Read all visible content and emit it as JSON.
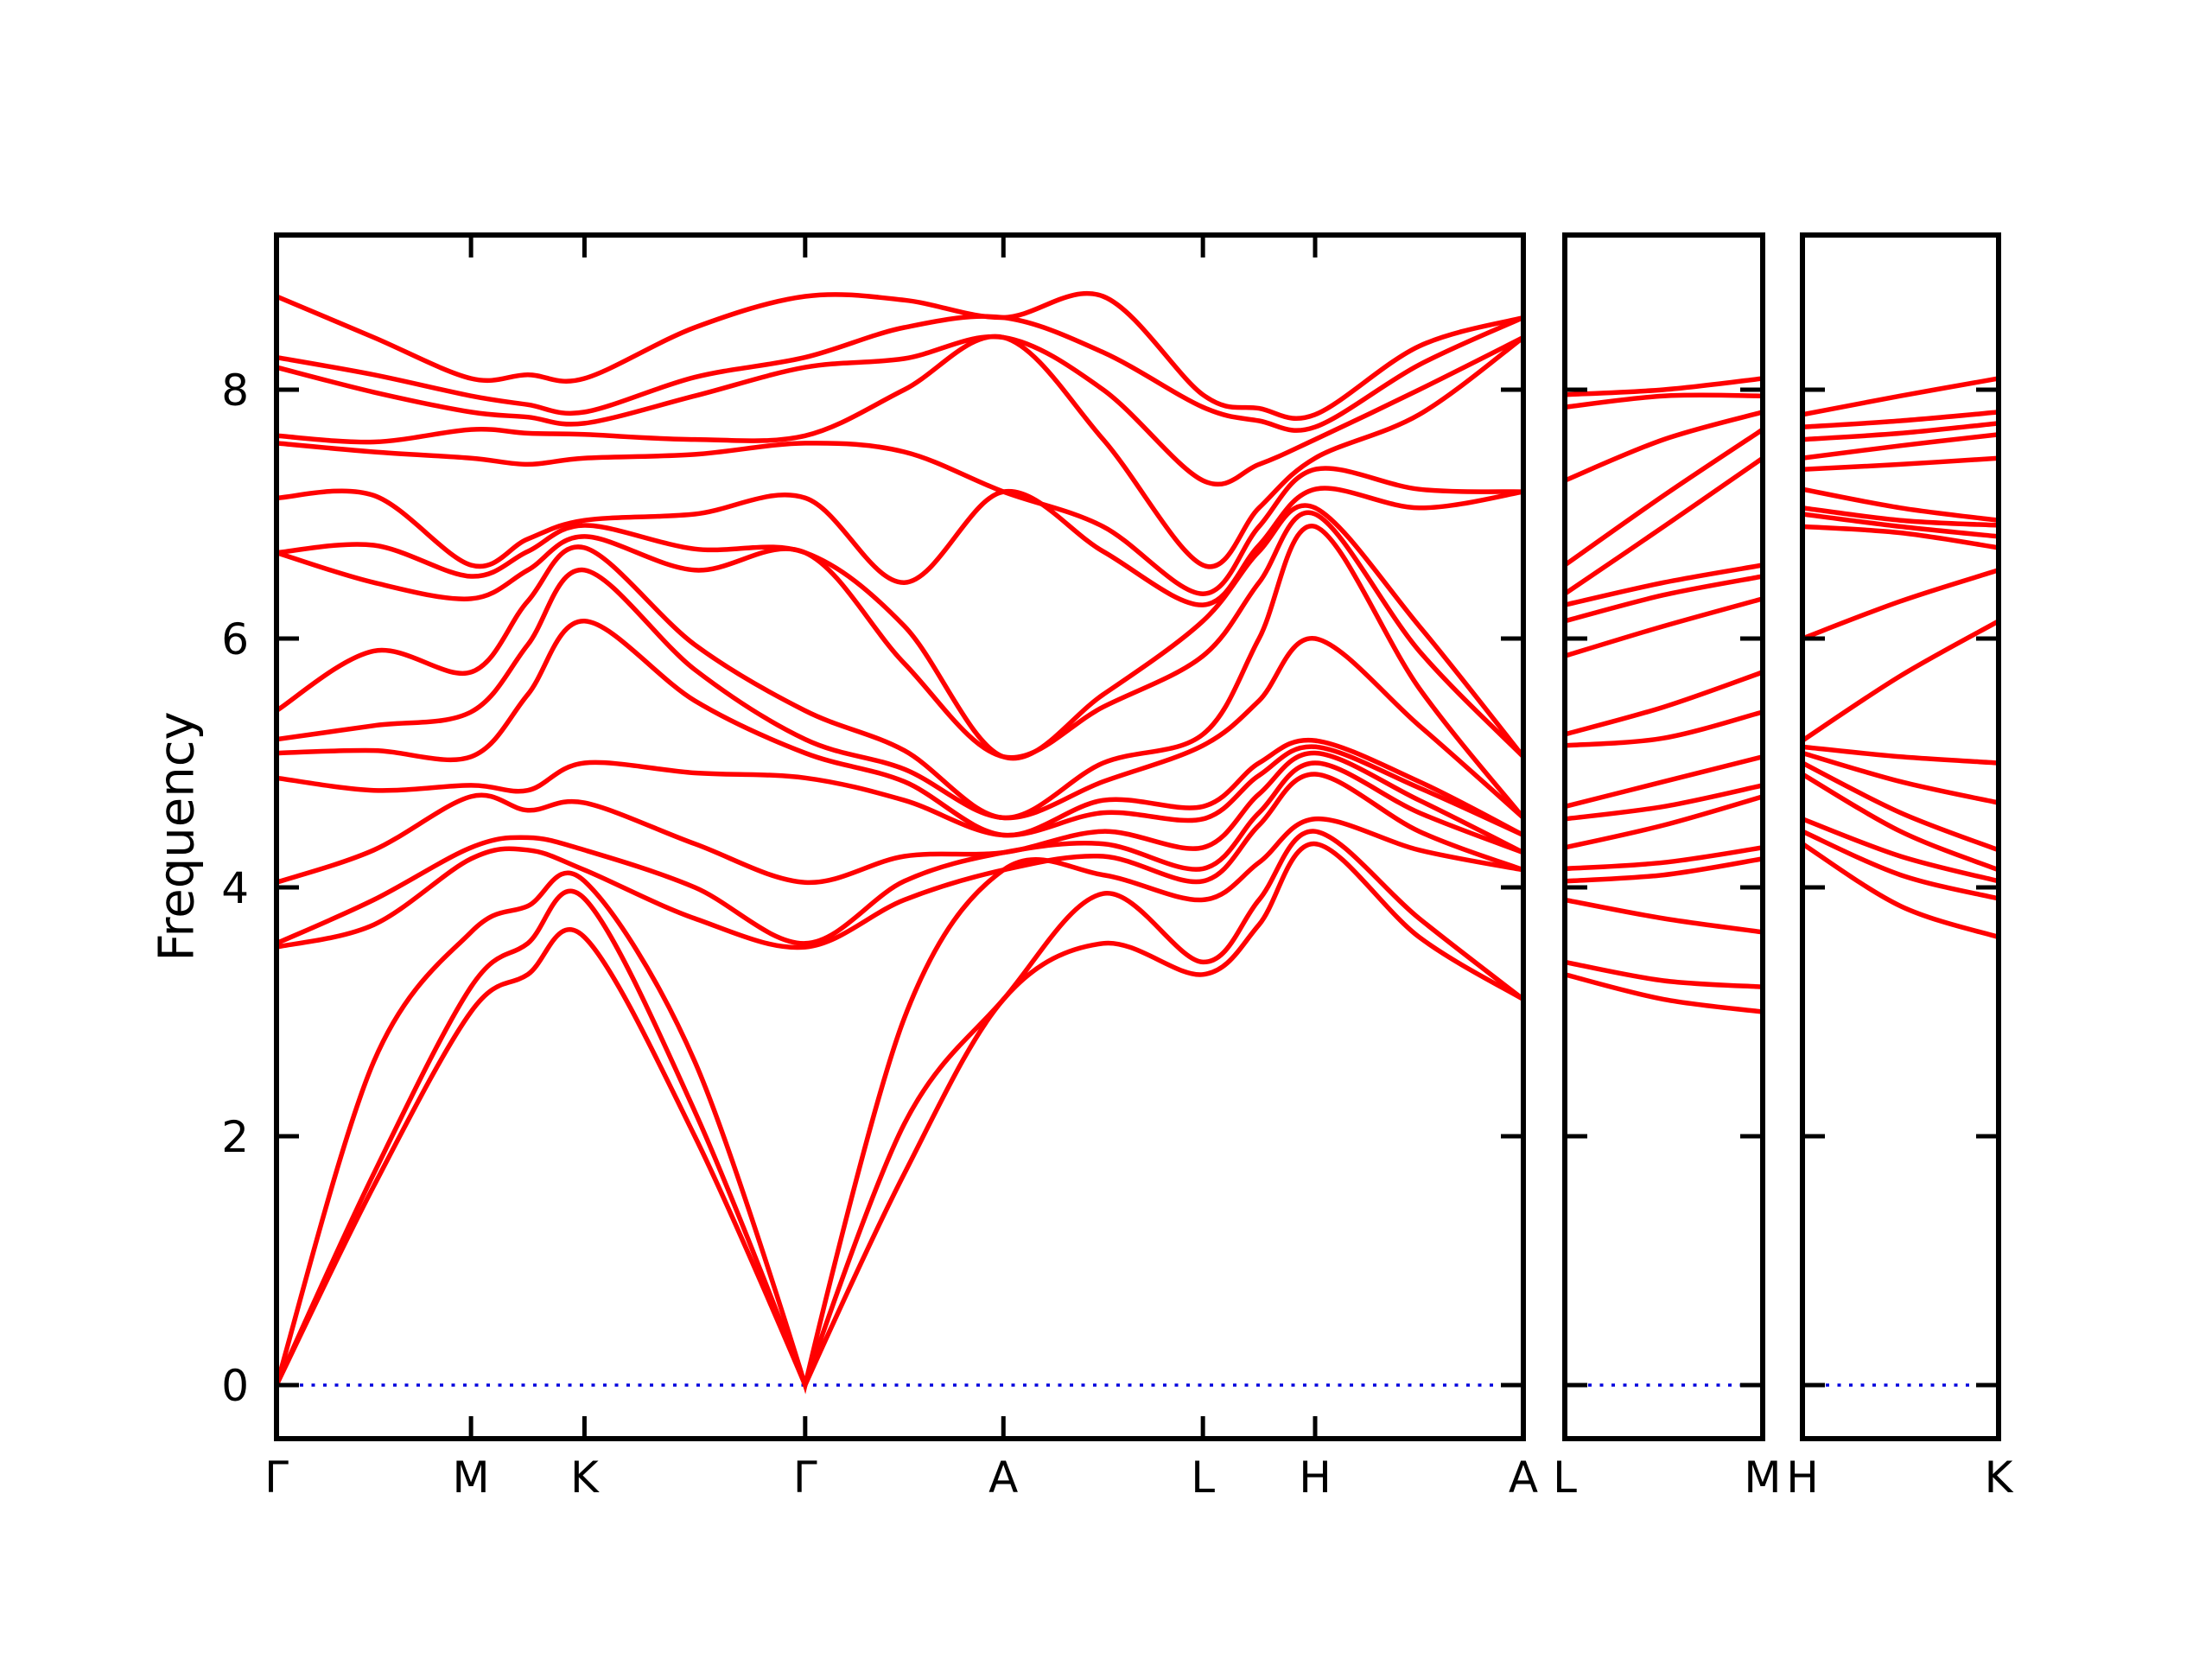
{
  "figure": {
    "background": "#ffffff",
    "frame_color": "#000000"
  },
  "chart_data": {
    "type": "line",
    "title": "",
    "xlabel": "",
    "ylabel": "Frequency",
    "ylim": [
      -0.43,
      9.24
    ],
    "y_ticks": [
      {
        "label": "0",
        "value": 0
      },
      {
        "label": "2",
        "value": 2
      },
      {
        "label": "4",
        "value": 4
      },
      {
        "label": "6",
        "value": 6
      },
      {
        "label": "8",
        "value": 8
      }
    ],
    "grid": false,
    "legend": "none",
    "band_color": "#ff0000",
    "zero_line": {
      "value": 0,
      "color": "#0000dd",
      "style": "dotted"
    },
    "panels": [
      {
        "name": "main",
        "stations": [
          {
            "label": "Γ",
            "t": 0.0
          },
          {
            "label": "M",
            "t": 0.156
          },
          {
            "label": "K",
            "t": 0.247
          },
          {
            "label": "Γ",
            "t": 0.424
          },
          {
            "label": "A",
            "t": 0.583
          },
          {
            "label": "L",
            "t": 0.743
          },
          {
            "label": "H",
            "t": 0.833
          },
          {
            "label": "A",
            "t": 1.0
          }
        ],
        "t": [
          0.0,
          0.078,
          0.156,
          0.2015,
          0.247,
          0.3355,
          0.424,
          0.5035,
          0.583,
          0.663,
          0.743,
          0.788,
          0.833,
          0.9165,
          1.0
        ],
        "bands": [
          [
            0.0,
            1.6,
            3.0,
            3.3,
            3.6,
            2.0,
            0.0,
            1.7,
            3.1,
            3.55,
            3.3,
            3.7,
            4.35,
            3.6,
            3.1
          ],
          [
            0.0,
            1.7,
            3.2,
            3.55,
            3.91,
            2.2,
            0.0,
            2.1,
            3.1,
            3.95,
            3.4,
            3.9,
            4.45,
            3.75,
            3.1
          ],
          [
            0.0,
            2.6,
            3.64,
            3.85,
            4.05,
            2.6,
            0.0,
            2.95,
            4.14,
            4.1,
            3.9,
            4.2,
            4.55,
            4.3,
            4.14
          ],
          [
            3.52,
            3.7,
            4.23,
            4.3,
            4.14,
            3.75,
            3.52,
            3.9,
            4.14,
            4.25,
            4.05,
            4.5,
            4.91,
            4.45,
            4.14
          ],
          [
            3.55,
            3.9,
            4.32,
            4.4,
            4.3,
            4.0,
            3.55,
            4.05,
            4.28,
            4.35,
            4.15,
            4.6,
            5.0,
            4.6,
            4.28
          ],
          [
            4.04,
            4.3,
            4.73,
            4.62,
            4.68,
            4.35,
            4.04,
            4.25,
            4.28,
            4.45,
            4.32,
            4.75,
            5.08,
            4.7,
            4.28
          ],
          [
            4.88,
            4.78,
            4.82,
            4.78,
            5.0,
            4.92,
            4.88,
            4.7,
            4.42,
            4.6,
            4.55,
            4.9,
            5.13,
            4.8,
            4.42
          ],
          [
            5.08,
            5.1,
            5.05,
            5.55,
            6.14,
            5.5,
            5.08,
            4.85,
            4.42,
            4.7,
            4.65,
            5.0,
            5.18,
            4.85,
            4.42
          ],
          [
            5.19,
            5.3,
            5.41,
            5.95,
            6.55,
            5.75,
            5.19,
            4.95,
            4.56,
            4.85,
            5.14,
            5.5,
            6.0,
            5.3,
            4.56
          ],
          [
            5.42,
            5.9,
            5.73,
            6.3,
            6.73,
            5.95,
            5.42,
            5.1,
            4.56,
            5.0,
            5.23,
            6.0,
            6.9,
            5.6,
            4.56
          ],
          [
            6.69,
            6.45,
            6.32,
            6.55,
            6.82,
            6.55,
            6.69,
            5.8,
            5.05,
            5.45,
            5.86,
            6.45,
            7.0,
            5.9,
            5.05
          ],
          [
            6.69,
            6.75,
            6.5,
            6.7,
            6.91,
            6.72,
            6.69,
            6.1,
            5.05,
            5.55,
            6.14,
            6.7,
            7.05,
            6.1,
            5.05
          ],
          [
            7.13,
            7.15,
            6.59,
            6.8,
            6.95,
            7.0,
            7.13,
            6.45,
            7.18,
            6.7,
            6.27,
            6.75,
            7.2,
            7.05,
            7.18
          ],
          [
            7.57,
            7.5,
            7.45,
            7.4,
            7.45,
            7.48,
            7.57,
            7.5,
            7.18,
            6.9,
            6.36,
            6.9,
            7.36,
            7.2,
            7.18
          ],
          [
            7.63,
            7.58,
            7.68,
            7.65,
            7.64,
            7.6,
            7.63,
            8.0,
            8.42,
            7.6,
            6.59,
            7.05,
            7.45,
            7.8,
            8.42
          ],
          [
            8.18,
            7.98,
            7.82,
            7.78,
            7.73,
            7.95,
            8.18,
            8.25,
            8.42,
            8.0,
            7.27,
            7.4,
            7.6,
            8.0,
            8.42
          ],
          [
            8.26,
            8.12,
            7.95,
            7.88,
            7.82,
            8.1,
            8.26,
            8.5,
            8.58,
            8.3,
            7.86,
            7.75,
            7.7,
            8.2,
            8.58
          ],
          [
            8.75,
            8.42,
            8.09,
            8.12,
            8.09,
            8.5,
            8.75,
            8.72,
            8.58,
            8.75,
            7.96,
            7.85,
            7.8,
            8.35,
            8.58
          ]
        ]
      },
      {
        "name": "L-M",
        "stations": [
          {
            "label": "L",
            "t": 0.0
          },
          {
            "label": "M",
            "t": 1.0
          }
        ],
        "t": [
          0.0,
          0.5,
          1.0
        ],
        "bands": [
          [
            3.3,
            3.1,
            3.0
          ],
          [
            3.4,
            3.25,
            3.2
          ],
          [
            3.9,
            3.75,
            3.64
          ],
          [
            4.05,
            4.1,
            4.23
          ],
          [
            4.15,
            4.2,
            4.32
          ],
          [
            4.32,
            4.5,
            4.73
          ],
          [
            4.55,
            4.65,
            4.82
          ],
          [
            4.65,
            4.85,
            5.05
          ],
          [
            5.14,
            5.2,
            5.41
          ],
          [
            5.23,
            5.45,
            5.73
          ],
          [
            5.86,
            6.1,
            6.32
          ],
          [
            6.14,
            6.35,
            6.5
          ],
          [
            6.27,
            6.45,
            6.59
          ],
          [
            6.36,
            6.9,
            7.45
          ],
          [
            6.59,
            7.15,
            7.68
          ],
          [
            7.27,
            7.6,
            7.82
          ],
          [
            7.86,
            7.95,
            7.95
          ],
          [
            7.96,
            8.0,
            8.09
          ]
        ]
      },
      {
        "name": "H-K",
        "stations": [
          {
            "label": "H",
            "t": 0.0
          },
          {
            "label": "K",
            "t": 1.0
          }
        ],
        "t": [
          0.0,
          0.5,
          1.0
        ],
        "bands": [
          [
            4.35,
            3.85,
            3.6
          ],
          [
            4.45,
            4.1,
            3.91
          ],
          [
            4.55,
            4.25,
            4.05
          ],
          [
            4.91,
            4.45,
            4.14
          ],
          [
            5.0,
            4.6,
            4.3
          ],
          [
            5.08,
            4.85,
            4.68
          ],
          [
            5.13,
            5.05,
            5.0
          ],
          [
            5.18,
            5.7,
            6.14
          ],
          [
            6.0,
            6.3,
            6.55
          ],
          [
            6.9,
            6.85,
            6.73
          ],
          [
            7.0,
            6.9,
            6.82
          ],
          [
            7.05,
            6.95,
            6.91
          ],
          [
            7.2,
            7.05,
            6.95
          ],
          [
            7.36,
            7.4,
            7.45
          ],
          [
            7.45,
            7.55,
            7.64
          ],
          [
            7.6,
            7.65,
            7.73
          ],
          [
            7.7,
            7.75,
            7.82
          ],
          [
            7.8,
            7.95,
            8.09
          ]
        ]
      }
    ]
  }
}
